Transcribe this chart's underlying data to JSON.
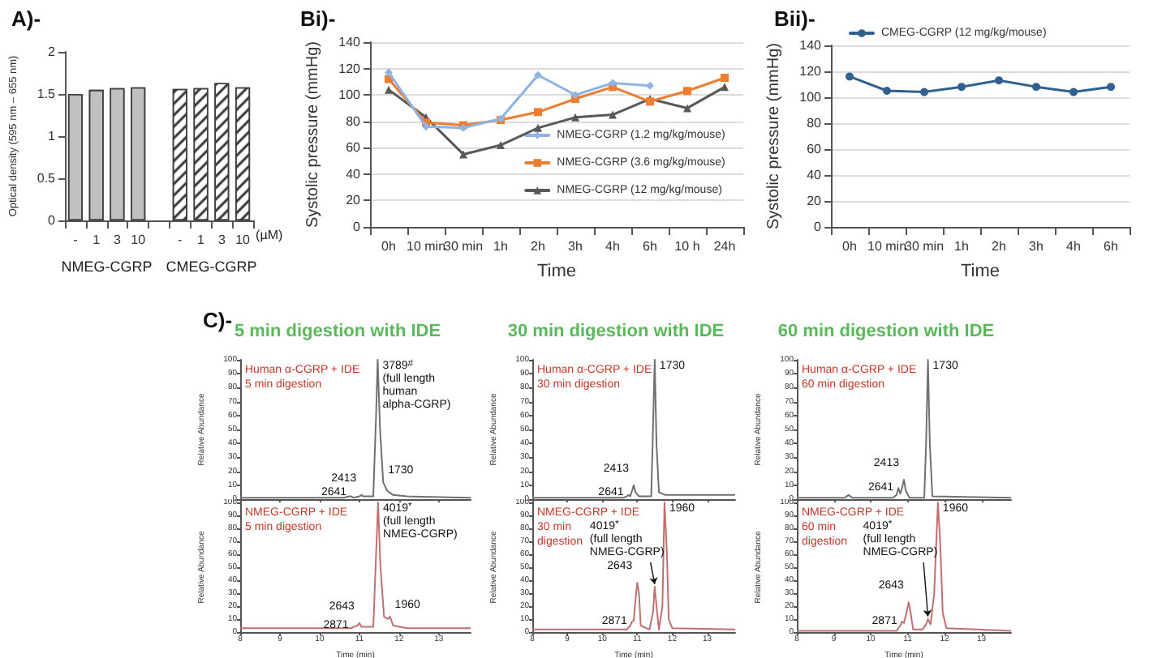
{
  "chart_data": [
    {
      "type": "bar",
      "title": "A)-",
      "ylabel": "Optical density (595 nm – 655 nm)",
      "xlabel": "(µM)",
      "categories": [
        "-",
        "1",
        "3",
        "10",
        null,
        "-",
        "1",
        "3",
        "10"
      ],
      "series": [
        {
          "color": "#c0c0c0",
          "values": [
            1.5,
            1.55,
            1.57,
            1.58,
            null,
            null,
            null,
            null,
            null
          ]
        },
        {
          "color": "#ffffff",
          "values": [
            null,
            null,
            null,
            null,
            null,
            1.56,
            1.57,
            1.63,
            1.58
          ]
        }
      ],
      "ylim": [
        0,
        2
      ],
      "yticks": [
        0,
        0.5,
        1,
        1.5,
        2
      ],
      "annotations": [
        "NMEG-CGRP",
        "CMEG-CGRP"
      ]
    },
    {
      "type": "line",
      "title": "Bi)-",
      "xlabel": "Time",
      "ylabel": "Systolic pressure (mmHg)",
      "categories": [
        "0h",
        "10 min",
        "30 min",
        "1h",
        "2h",
        "3h",
        "4h",
        "6h",
        "10 h",
        "24h"
      ],
      "series": [
        {
          "name": "NMEG-CGRP (1.2 mg/kg/mouse)",
          "color": "#8db4e2",
          "marker": "diamond",
          "values": [
            117,
            76,
            75,
            82,
            115,
            100,
            109,
            107,
            null,
            null
          ]
        },
        {
          "name": "NMEG-CGRP (3.6 mg/kg/mouse)",
          "color": "#ed7d31",
          "marker": "square",
          "values": [
            112,
            79,
            77,
            81,
            87,
            97,
            106,
            95,
            103,
            113
          ]
        },
        {
          "name": "NMEG-CGRP (12 mg/kg/mouse)",
          "color": "#595959",
          "marker": "triangle",
          "values": [
            104,
            83,
            55,
            62,
            75,
            83,
            85,
            97,
            90,
            106
          ]
        }
      ],
      "ylim": [
        0,
        140
      ],
      "yticks": [
        0,
        20,
        40,
        60,
        80,
        100,
        120,
        140
      ],
      "grid": "y",
      "legend": "bottom right"
    },
    {
      "type": "line",
      "title": "Bii)-",
      "xlabel": "Time",
      "ylabel": "Systolic pressure (mmHg)",
      "categories": [
        "0h",
        "10 min",
        "30 min",
        "1h",
        "2h",
        "3h",
        "4h",
        "6h"
      ],
      "series": [
        {
          "name": "CMEG-CGRP (12 mg/kg/mouse)",
          "color": "#31608f",
          "marker": "circle",
          "values": [
            116,
            105,
            104,
            108,
            113,
            108,
            104,
            108
          ]
        }
      ],
      "ylim": [
        0,
        140
      ],
      "yticks": [
        0,
        20,
        40,
        60,
        80,
        100,
        120,
        140
      ],
      "grid": "y",
      "legend": "top left"
    },
    {
      "type": "line",
      "title": "C)-",
      "subtitle": "5 min digestion with IDE",
      "ylabel": "Relative Abundance",
      "tick_labels": "y",
      "xlim": [
        8,
        13.8
      ],
      "xticks": [
        8,
        9,
        10,
        11,
        12,
        13
      ],
      "ylim": [
        0,
        100
      ],
      "yticks": [
        0,
        10,
        20,
        30,
        40,
        50,
        60,
        70,
        80,
        90,
        100
      ],
      "x": [
        8,
        10.6,
        10.75,
        10.8,
        10.85,
        11.0,
        11.05,
        11.1,
        11.35,
        11.42,
        11.46,
        11.52,
        11.6,
        11.7,
        11.85,
        12.2,
        13.8
      ],
      "series": [
        {
          "color": "#707070",
          "values": [
            1,
            1,
            2,
            2,
            1,
            2,
            3,
            2,
            2,
            60,
            100,
            50,
            12,
            6,
            3,
            2,
            1
          ]
        }
      ],
      "annotations": [
        "Human α-CGRP + IDE\n5 min digestion",
        {
          "text": "3789$^{#}$\n(full length\nhuman\nalpha-CGRP)",
          "x": 11.46,
          "y": 100
        },
        {
          "text": "2641",
          "x": 10.8,
          "y": 2
        },
        {
          "text": "2413",
          "x": 11.05,
          "y": 3
        },
        {
          "text": "1730",
          "x": 11.6,
          "y": 12
        }
      ]
    },
    {
      "type": "line",
      "subtitle": "30 min digestion with IDE",
      "ylabel": "Relative Abundance",
      "tick_labels": "y",
      "xlim": [
        8,
        13.8
      ],
      "xticks": [
        8,
        9,
        10,
        11,
        12,
        13
      ],
      "ylim": [
        0,
        100
      ],
      "yticks": [
        0,
        10,
        20,
        30,
        40,
        50,
        60,
        70,
        80,
        90,
        100
      ],
      "x": [
        8,
        10.6,
        10.7,
        10.75,
        10.8,
        10.85,
        10.9,
        10.95,
        11.05,
        11.4,
        11.45,
        11.5,
        11.55,
        11.62,
        11.8,
        13.8
      ],
      "series": [
        {
          "color": "#707070",
          "values": [
            1,
            1,
            2,
            3,
            2,
            6,
            10,
            5,
            2,
            2,
            50,
            100,
            40,
            5,
            3,
            3
          ]
        }
      ],
      "annotations": [
        "Human α-CGRP + IDE\n30 min digestion",
        {
          "text": "1730",
          "x": 11.5,
          "y": 100
        },
        {
          "text": "2641",
          "x": 10.75,
          "y": 3
        },
        {
          "text": "2413",
          "x": 10.9,
          "y": 10
        }
      ]
    },
    {
      "type": "line",
      "subtitle": "60 min digestion with IDE",
      "ylabel": "Relative Abundance",
      "tick_labels": "y",
      "xlim": [
        8,
        13.8
      ],
      "xticks": [
        8,
        9,
        10,
        11,
        12,
        13
      ],
      "ylim": [
        0,
        100
      ],
      "yticks": [
        0,
        10,
        20,
        30,
        40,
        50,
        60,
        70,
        80,
        90,
        100
      ],
      "x": [
        8,
        9.3,
        9.4,
        9.5,
        10.6,
        10.7,
        10.75,
        10.8,
        10.85,
        10.9,
        10.95,
        11.05,
        11.45,
        11.5,
        11.55,
        11.6,
        11.67,
        13.8
      ],
      "series": [
        {
          "color": "#707070",
          "values": [
            1,
            1,
            3,
            1,
            1,
            3,
            8,
            4,
            8,
            14,
            6,
            1,
            1,
            40,
            100,
            40,
            2,
            1
          ]
        }
      ],
      "annotations": [
        "Human α-CGRP + IDE\n60 min digestion",
        {
          "text": "1730",
          "x": 11.55,
          "y": 100
        },
        {
          "text": "2641",
          "x": 10.75,
          "y": 8
        },
        {
          "text": "2413",
          "x": 10.9,
          "y": 14
        }
      ]
    },
    {
      "type": "line",
      "ylabel": "Relative Abundance",
      "xlabel": "Time (min)",
      "xlim": [
        8,
        13.8
      ],
      "xticks": [
        8,
        9,
        10,
        11,
        12,
        13
      ],
      "ylim": [
        0,
        100
      ],
      "yticks": [
        0,
        10,
        20,
        30,
        40,
        50,
        60,
        70,
        80,
        90,
        100
      ],
      "x": [
        8,
        10.8,
        10.85,
        10.95,
        11.0,
        11.05,
        11.35,
        11.42,
        11.47,
        11.53,
        11.62,
        11.72,
        11.77,
        11.85,
        12.2,
        13.8
      ],
      "series": [
        {
          "color": "#c07070",
          "values": [
            3,
            3,
            4,
            5,
            7,
            4,
            4,
            60,
            100,
            50,
            12,
            10,
            12,
            5,
            3,
            3
          ]
        }
      ],
      "annotations": [
        "NMEG-CGRP + IDE\n5 min digestion",
        {
          "text": "4019$^{*}$\n(full length\nNMEG-CGRP)",
          "x": 11.47,
          "y": 100
        },
        {
          "text": "2871",
          "x": 10.85,
          "y": 4
        },
        {
          "text": "2643",
          "x": 11.0,
          "y": 7
        },
        {
          "text": "1960",
          "x": 11.77,
          "y": 12
        }
      ]
    },
    {
      "type": "line",
      "ylabel": "Relative Abundance",
      "xlabel": "Time (min)",
      "xlim": [
        8,
        13.8
      ],
      "xticks": [
        8,
        9,
        10,
        11,
        12,
        13
      ],
      "ylim": [
        0,
        100
      ],
      "yticks": [
        0,
        10,
        20,
        30,
        40,
        50,
        60,
        70,
        80,
        90,
        100
      ],
      "x": [
        8,
        10.7,
        10.8,
        10.85,
        10.9,
        10.95,
        11.0,
        11.05,
        11.1,
        11.35,
        11.45,
        11.5,
        11.55,
        11.62,
        11.72,
        11.78,
        11.85,
        11.9,
        12.0,
        13.8
      ],
      "series": [
        {
          "color": "#c07070",
          "values": [
            2,
            2,
            5,
            8,
            9,
            25,
            38,
            30,
            5,
            2,
            15,
            35,
            20,
            2,
            20,
            100,
            60,
            10,
            3,
            2
          ]
        }
      ],
      "annotations": [
        "NMEG-CGRP + IDE\n30 min\ndigestion",
        {
          "text": "1960",
          "x": 11.78,
          "y": 100
        },
        {
          "text": "2871",
          "x": 10.85,
          "y": 8
        },
        {
          "text": "2643",
          "x": 11.0,
          "y": 38
        },
        {
          "text": "4019$^{*}$\n(full length\nNMEG-CGRP)",
          "x": 11.5,
          "y": 35
        }
      ]
    },
    {
      "type": "line",
      "ylabel": "Relative Abundance",
      "xlabel": "Time (min)",
      "xlim": [
        8,
        13.8
      ],
      "xticks": [
        8,
        9,
        10,
        11,
        12,
        13
      ],
      "ylim": [
        0,
        100
      ],
      "yticks": [
        0,
        10,
        20,
        30,
        40,
        50,
        60,
        70,
        80,
        90,
        100
      ],
      "x": [
        8,
        10.7,
        10.8,
        10.85,
        10.9,
        10.97,
        11.03,
        11.08,
        11.15,
        11.4,
        11.5,
        11.55,
        11.62,
        11.72,
        11.82,
        11.88,
        11.95,
        12.05,
        13.8
      ],
      "series": [
        {
          "color": "#c07070",
          "values": [
            1,
            1,
            5,
            8,
            7,
            15,
            23,
            15,
            2,
            2,
            6,
            10,
            6,
            30,
            100,
            70,
            15,
            3,
            1
          ]
        }
      ],
      "annotations": [
        "NMEG-CGRP + IDE\n60 min\ndigestion",
        {
          "text": "1960",
          "x": 11.82,
          "y": 100
        },
        {
          "text": "2871",
          "x": 10.85,
          "y": 8
        },
        {
          "text": "2643",
          "x": 11.03,
          "y": 23
        },
        {
          "text": "4019$^{*}$\n(full length\nNMEG-CGRP)",
          "x": 11.55,
          "y": 10
        }
      ]
    }
  ]
}
